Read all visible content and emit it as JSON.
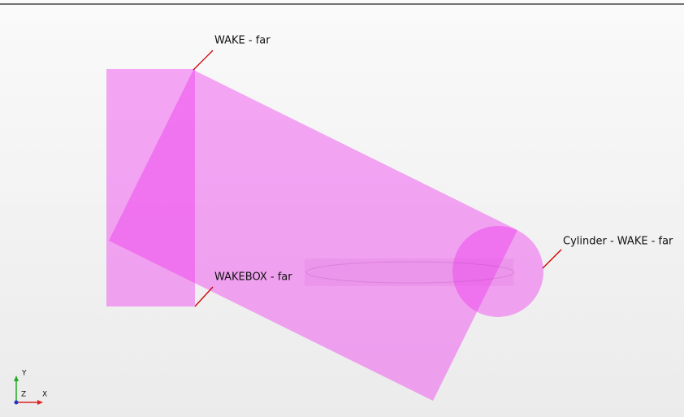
{
  "viewport": {
    "annotations": [
      {
        "label": "WAKE - far"
      },
      {
        "label": "WAKEBOX - far"
      },
      {
        "label": "Cylinder - WAKE - far"
      }
    ],
    "triad": {
      "y": "Y",
      "z": "Z",
      "x": "X"
    }
  }
}
